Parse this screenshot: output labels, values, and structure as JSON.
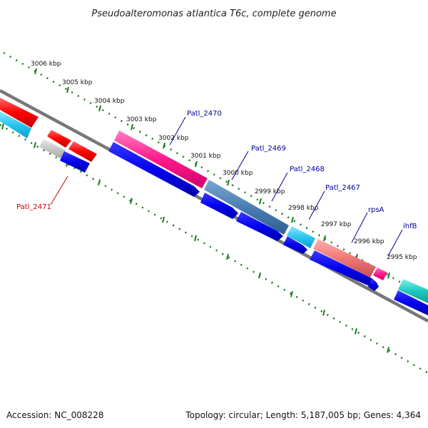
{
  "title": "Pseudoalteromonas atlantica T6c, complete genome",
  "footer": {
    "accession": "Accession: NC_008228",
    "summary": "Topology: circular; Length: 5,187,005 bp; Genes: 4,364"
  },
  "ticks": [
    "3006 kbp",
    "3005 kbp",
    "3004 kbp",
    "3003 kbp",
    "3002 kbp",
    "3001 kbp",
    "3000 kbp",
    "2999 kbp",
    "2998 kbp",
    "2997 kbp",
    "2996 kbp",
    "2995 kbp"
  ],
  "genes": {
    "patl_2471": "Patl_2471",
    "patl_2470": "Patl_2470",
    "patl_2469": "Patl_2469",
    "patl_2468": "Patl_2468",
    "patl_2467": "Patl_2467",
    "rpsa": "rpsA",
    "ihfb": "ihfB"
  },
  "colors": {
    "backbone": "#777777",
    "tick": "#1a7a1a",
    "cds": "#0000ee",
    "red_label": "#cc0000",
    "blue_label": "#000099"
  }
}
